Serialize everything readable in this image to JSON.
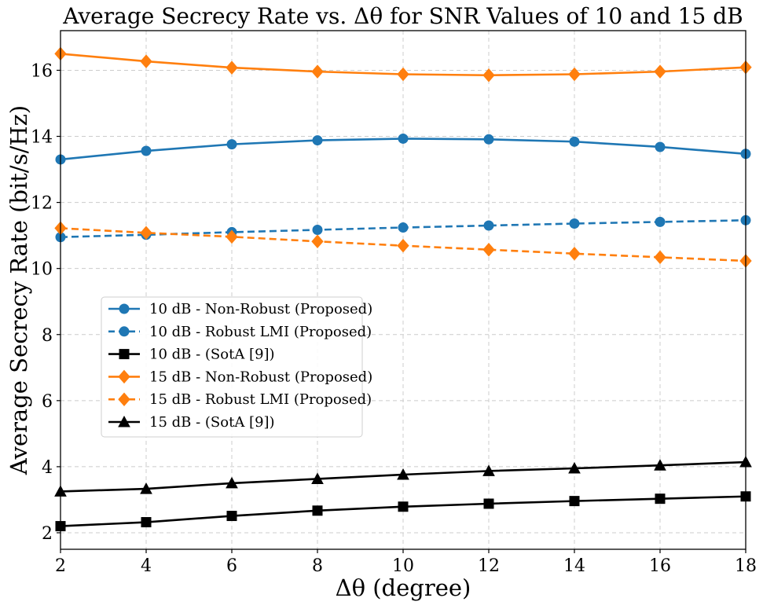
{
  "chart_data": {
    "type": "line",
    "title": "Average Secrecy Rate vs. Δθ for SNR Values of 10 and 15 dB",
    "xlabel": "Δθ (degree)",
    "ylabel": "Average Secrecy Rate (bit/s/Hz)",
    "xlim": [
      2,
      18
    ],
    "ylim": [
      1.5,
      17.2
    ],
    "xticks": [
      2,
      4,
      6,
      8,
      10,
      12,
      14,
      16,
      18
    ],
    "yticks": [
      2,
      4,
      6,
      8,
      10,
      12,
      14,
      16
    ],
    "grid": true,
    "legend_position": "center-left",
    "x": [
      2,
      4,
      6,
      8,
      10,
      12,
      14,
      16,
      18
    ],
    "series": [
      {
        "name": "10 dB - Non-Robust (Proposed)",
        "color": "#1f77b4",
        "line_style": "solid",
        "marker": "circle",
        "values": [
          13.3,
          13.56,
          13.76,
          13.88,
          13.93,
          13.91,
          13.84,
          13.68,
          13.47
        ]
      },
      {
        "name": "10 dB - Robust LMI (Proposed)",
        "color": "#1f77b4",
        "line_style": "dashed",
        "marker": "circle",
        "values": [
          10.95,
          11.02,
          11.1,
          11.17,
          11.24,
          11.3,
          11.36,
          11.41,
          11.46
        ]
      },
      {
        "name": "10 dB - (SotA [9])",
        "color": "#000000",
        "line_style": "solid",
        "marker": "square",
        "values": [
          2.2,
          2.32,
          2.51,
          2.67,
          2.79,
          2.88,
          2.96,
          3.03,
          3.1
        ]
      },
      {
        "name": "15 dB - Non-Robust (Proposed)",
        "color": "#ff7f0e",
        "line_style": "solid",
        "marker": "diamond",
        "values": [
          16.5,
          16.27,
          16.08,
          15.96,
          15.88,
          15.85,
          15.88,
          15.96,
          16.09
        ]
      },
      {
        "name": "15 dB - Robust LMI (Proposed)",
        "color": "#ff7f0e",
        "line_style": "dashed",
        "marker": "diamond",
        "values": [
          11.22,
          11.08,
          10.96,
          10.82,
          10.69,
          10.57,
          10.45,
          10.34,
          10.23
        ]
      },
      {
        "name": "15 dB - (SotA [9])",
        "color": "#000000",
        "line_style": "solid",
        "marker": "triangle",
        "values": [
          3.25,
          3.33,
          3.5,
          3.63,
          3.76,
          3.87,
          3.95,
          4.04,
          4.14
        ]
      }
    ]
  }
}
